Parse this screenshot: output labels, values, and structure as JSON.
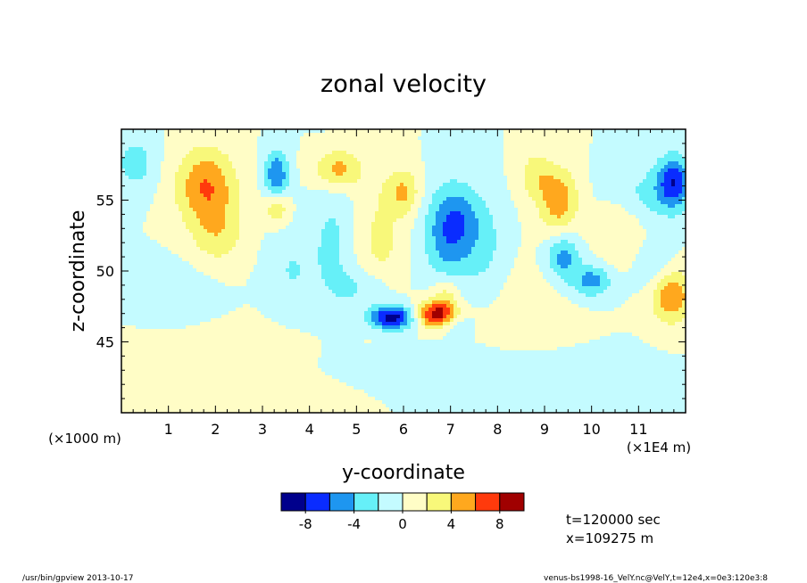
{
  "chart_data": {
    "type": "heatmap",
    "title": "zonal velocity",
    "xlabel": "y-coordinate",
    "ylabel": "z-coordinate",
    "x_unit_left": "(×1000 m)",
    "x_unit_right": "(×1E4 m)",
    "xlim": [
      0,
      12
    ],
    "ylim": [
      40,
      60
    ],
    "x_ticks": [
      1,
      2,
      3,
      4,
      5,
      6,
      7,
      8,
      9,
      10,
      11
    ],
    "x_tick_labels": [
      "1",
      "2",
      "3",
      "4",
      "5",
      "6",
      "7",
      "8",
      "9",
      "10",
      "11"
    ],
    "y_ticks": [
      45,
      50,
      55
    ],
    "y_tick_labels": [
      "45",
      "50",
      "55"
    ],
    "contour_levels": [
      -10,
      -8,
      -6,
      -4,
      -2,
      0,
      2,
      4,
      6,
      8,
      10
    ],
    "colors": [
      "#00008c",
      "#0a2cff",
      "#1e96f0",
      "#66f0f8",
      "#c4fbff",
      "#fffdc6",
      "#f8f87a",
      "#ffa81e",
      "#ff3a0c",
      "#a00000"
    ],
    "colorbar": {
      "tick_labels": [
        "-8",
        "-4",
        "0",
        "4",
        "8"
      ]
    },
    "features": [
      {
        "x": 0.3,
        "y": 57.6,
        "sx": 0.3,
        "sy": 1.4,
        "a": -3
      },
      {
        "x": 1.8,
        "y": 56.0,
        "sx": 0.45,
        "sy": 1.9,
        "a": 6
      },
      {
        "x": 2.05,
        "y": 52.5,
        "sx": 0.4,
        "sy": 1.6,
        "a": 3
      },
      {
        "x": 3.3,
        "y": 56.8,
        "sx": 0.18,
        "sy": 1.2,
        "a": -6
      },
      {
        "x": 3.3,
        "y": 54.4,
        "sx": 0.18,
        "sy": 0.8,
        "a": 4
      },
      {
        "x": 4.5,
        "y": 52.0,
        "sx": 0.35,
        "sy": 3.2,
        "a": -2.4
      },
      {
        "x": 3.6,
        "y": 50.0,
        "sx": 0.35,
        "sy": 2.0,
        "a": -2
      },
      {
        "x": 4.6,
        "y": 57.2,
        "sx": 0.35,
        "sy": 1.0,
        "a": 5
      },
      {
        "x": 5.5,
        "y": 52.0,
        "sx": 0.4,
        "sy": 3.2,
        "a": 2.5
      },
      {
        "x": 5.2,
        "y": 48.8,
        "sx": 0.45,
        "sy": 1.0,
        "a": -2.5
      },
      {
        "x": 5.75,
        "y": 46.7,
        "sx": 0.35,
        "sy": 0.6,
        "a": -9.5
      },
      {
        "x": 6.7,
        "y": 46.9,
        "sx": 0.3,
        "sy": 0.7,
        "a": 9.5
      },
      {
        "x": 6.9,
        "y": 48.4,
        "sx": 0.2,
        "sy": 0.9,
        "a": 3
      },
      {
        "x": 7.05,
        "y": 46.2,
        "sx": 0.25,
        "sy": 0.6,
        "a": -2.5
      },
      {
        "x": 7.0,
        "y": 52.5,
        "sx": 0.4,
        "sy": 2.4,
        "a": -5.5
      },
      {
        "x": 7.8,
        "y": 51.5,
        "sx": 0.3,
        "sy": 2.5,
        "a": -2
      },
      {
        "x": 6.0,
        "y": 55.6,
        "sx": 0.25,
        "sy": 1.1,
        "a": 4
      },
      {
        "x": 7.2,
        "y": 54.0,
        "sx": 0.35,
        "sy": 1.5,
        "a": -2
      },
      {
        "x": 9.3,
        "y": 55.0,
        "sx": 0.3,
        "sy": 1.6,
        "a": 5.5
      },
      {
        "x": 8.8,
        "y": 56.8,
        "sx": 0.25,
        "sy": 1.2,
        "a": 3
      },
      {
        "x": 9.4,
        "y": 51.0,
        "sx": 0.25,
        "sy": 1.1,
        "a": -5
      },
      {
        "x": 10.0,
        "y": 49.3,
        "sx": 0.3,
        "sy": 0.8,
        "a": -5
      },
      {
        "x": 10.6,
        "y": 53.5,
        "sx": 0.4,
        "sy": 2.0,
        "a": 2.5
      },
      {
        "x": 11.0,
        "y": 55.3,
        "sx": 0.6,
        "sy": 1.5,
        "a": -3
      },
      {
        "x": 11.75,
        "y": 56.3,
        "sx": 0.25,
        "sy": 1.3,
        "a": -7
      },
      {
        "x": 11.7,
        "y": 48.2,
        "sx": 0.3,
        "sy": 1.3,
        "a": 6
      },
      {
        "x": 11.3,
        "y": 50.3,
        "sx": 0.3,
        "sy": 1.2,
        "a": -2
      },
      {
        "x": 1.2,
        "y": 48.5,
        "sx": 0.6,
        "sy": 1.5,
        "a": -1.3
      },
      {
        "x": 2.3,
        "y": 44.0,
        "sx": 1.2,
        "sy": 1.6,
        "a": 1.0
      },
      {
        "x": 8.5,
        "y": 47.0,
        "sx": 0.8,
        "sy": 2.5,
        "a": 1.0
      },
      {
        "x": 8.5,
        "y": 43.0,
        "sx": 1.5,
        "sy": 1.2,
        "a": -1.0
      },
      {
        "x": 3.5,
        "y": 41.5,
        "sx": 1.0,
        "sy": 0.9,
        "a": 1.0
      },
      {
        "x": 6.0,
        "y": 43.0,
        "sx": 1.2,
        "sy": 1.0,
        "a": -1.0
      }
    ]
  },
  "annotations": {
    "time": "t=120000 sec",
    "x_position": "x=109275 m"
  },
  "footer": {
    "left": "/usr/bin/gpview  2013-10-17",
    "right": "venus-bs1998-16_VelY.nc@VelY,t=12e4,x=0e3:120e3:8"
  }
}
